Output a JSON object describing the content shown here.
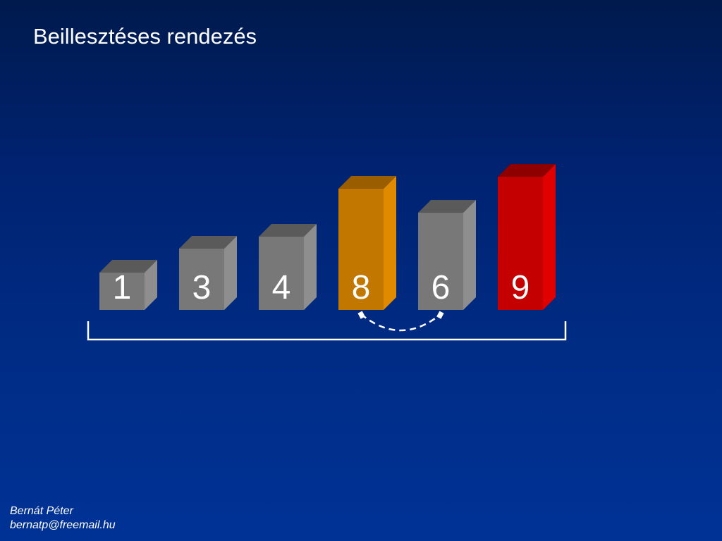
{
  "slide": {
    "title": "Beillesztéses rendezés"
  },
  "array": {
    "values": [
      1,
      3,
      4,
      8,
      6,
      9
    ],
    "states": [
      "sorted",
      "sorted",
      "sorted",
      "current",
      "compare",
      "max"
    ]
  },
  "swap_arrow": {
    "from_index": 3,
    "to_index": 4,
    "style": "dashed"
  },
  "colors": {
    "sorted": {
      "front": "#787878",
      "top": "#5a5a5a",
      "side": "#8e8e8e"
    },
    "current": {
      "front": "#c27700",
      "top": "#9a5e00",
      "side": "#e08a00"
    },
    "compare": {
      "front": "#787878",
      "top": "#5a5a5a",
      "side": "#8e8e8e"
    },
    "max": {
      "front": "#c40000",
      "top": "#8e0000",
      "side": "#e00000"
    },
    "label": "#ffffff",
    "bracket": "#ffffff"
  },
  "footer": {
    "author": "Bernát Péter",
    "email": "bernatp@freemail.hu"
  }
}
